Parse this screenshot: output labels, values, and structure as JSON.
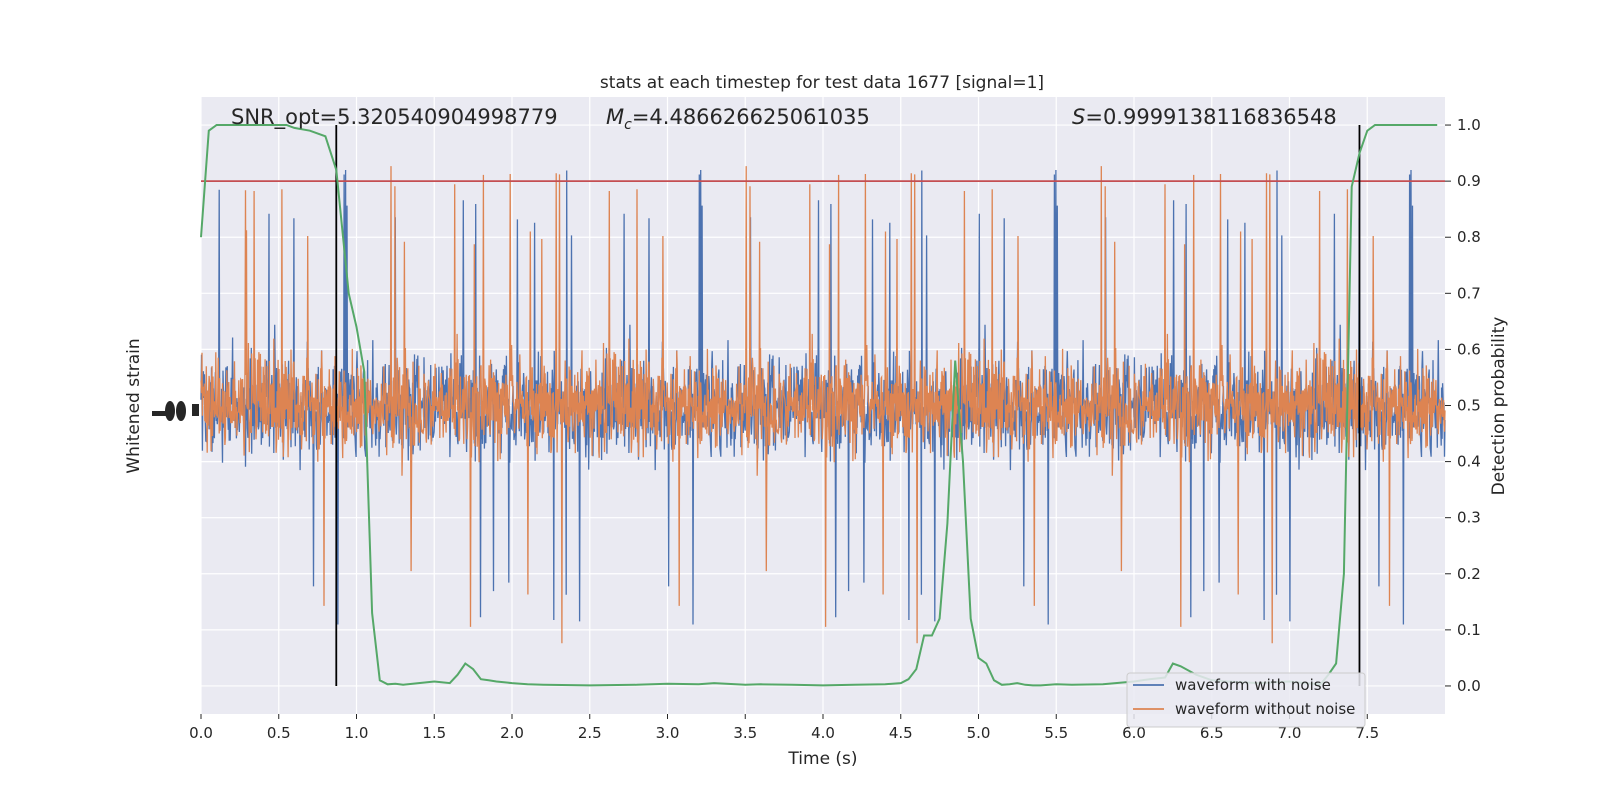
{
  "chart_data": {
    "type": "line",
    "title": "stats at each timestep for test data 1677 [signal=1]",
    "xlabel": "Time (s)",
    "ylabel_left": "Whitened strain",
    "ylabel_right": "Detection probability",
    "xlim": [
      0.0,
      8.0
    ],
    "ylim_right": [
      -0.05,
      1.05
    ],
    "x_ticks": [
      0.0,
      0.5,
      1.0,
      1.5,
      2.0,
      2.5,
      3.0,
      3.5,
      4.0,
      4.5,
      5.0,
      5.5,
      6.0,
      6.5,
      7.0,
      7.5
    ],
    "x_tick_labels": [
      "0.0",
      "0.5",
      "1.0",
      "1.5",
      "2.0",
      "2.5",
      "3.0",
      "3.5",
      "4.0",
      "4.5",
      "5.0",
      "5.5",
      "6.0",
      "6.5",
      "7.0",
      "7.5"
    ],
    "y_ticks_right": [
      0.0,
      0.1,
      0.2,
      0.3,
      0.4,
      0.5,
      0.6,
      0.7,
      0.8,
      0.9,
      1.0
    ],
    "y_tick_labels_right": [
      "0.0",
      "0.1",
      "0.2",
      "0.3",
      "0.4",
      "0.5",
      "0.6",
      "0.7",
      "0.8",
      "0.9",
      "1.0"
    ],
    "grid": true,
    "annotations": {
      "snr": "SNR_opt=5.320540904998779",
      "mc_symbol": "M",
      "mc_sub": "c",
      "mc_value": "=4.486626625061035",
      "s_symbol": "S",
      "s_value": "=0.9999138116836548"
    },
    "threshold": 0.9,
    "vlines": [
      0.87,
      7.45
    ],
    "series": [
      {
        "name": "waveform with noise",
        "color": "#4c72b0",
        "noise_center": 0.5,
        "noise_max_amplitude": 0.44
      },
      {
        "name": "waveform without noise",
        "color": "#dd8452"
      },
      {
        "color": "#55a868",
        "x": [
          0.0,
          0.05,
          0.1,
          0.2,
          0.3,
          0.4,
          0.5,
          0.55,
          0.6,
          0.7,
          0.8,
          0.87,
          0.95,
          1.0,
          1.05,
          1.1,
          1.15,
          1.2,
          1.25,
          1.3,
          1.4,
          1.5,
          1.6,
          1.65,
          1.7,
          1.75,
          1.8,
          1.85,
          1.9,
          2.0,
          2.1,
          2.2,
          2.5,
          2.8,
          3.0,
          3.2,
          3.3,
          3.5,
          3.6,
          3.8,
          4.0,
          4.2,
          4.4,
          4.5,
          4.55,
          4.6,
          4.65,
          4.7,
          4.75,
          4.8,
          4.85,
          4.9,
          4.95,
          5.0,
          5.05,
          5.1,
          5.15,
          5.2,
          5.25,
          5.3,
          5.35,
          5.4,
          5.5,
          5.6,
          5.8,
          6.0,
          6.1,
          6.2,
          6.25,
          6.3,
          6.4,
          6.5,
          6.6,
          6.8,
          7.0,
          7.1,
          7.2,
          7.25,
          7.3,
          7.35,
          7.4,
          7.45,
          7.5,
          7.55,
          7.6,
          7.7,
          7.8,
          7.95
        ],
        "y": [
          0.8,
          0.99,
          1.0,
          1.0,
          1.0,
          1.0,
          1.0,
          1.0,
          0.995,
          0.99,
          0.98,
          0.92,
          0.7,
          0.64,
          0.56,
          0.13,
          0.01,
          0.003,
          0.004,
          0.002,
          0.005,
          0.008,
          0.005,
          0.02,
          0.04,
          0.03,
          0.012,
          0.01,
          0.008,
          0.005,
          0.003,
          0.002,
          0.001,
          0.002,
          0.004,
          0.003,
          0.005,
          0.002,
          0.003,
          0.002,
          0.001,
          0.002,
          0.003,
          0.005,
          0.012,
          0.03,
          0.09,
          0.09,
          0.12,
          0.29,
          0.58,
          0.4,
          0.12,
          0.05,
          0.04,
          0.01,
          0.002,
          0.003,
          0.005,
          0.002,
          0.001,
          0.001,
          0.003,
          0.002,
          0.003,
          0.008,
          0.012,
          0.015,
          0.04,
          0.035,
          0.02,
          0.01,
          0.008,
          0.005,
          0.008,
          0.005,
          0.003,
          0.02,
          0.04,
          0.2,
          0.89,
          0.95,
          0.99,
          1.0,
          1.0,
          1.0,
          1.0,
          1.0
        ]
      }
    ],
    "threshold_color": "#c44e52",
    "legend_placement": "lower-right"
  }
}
